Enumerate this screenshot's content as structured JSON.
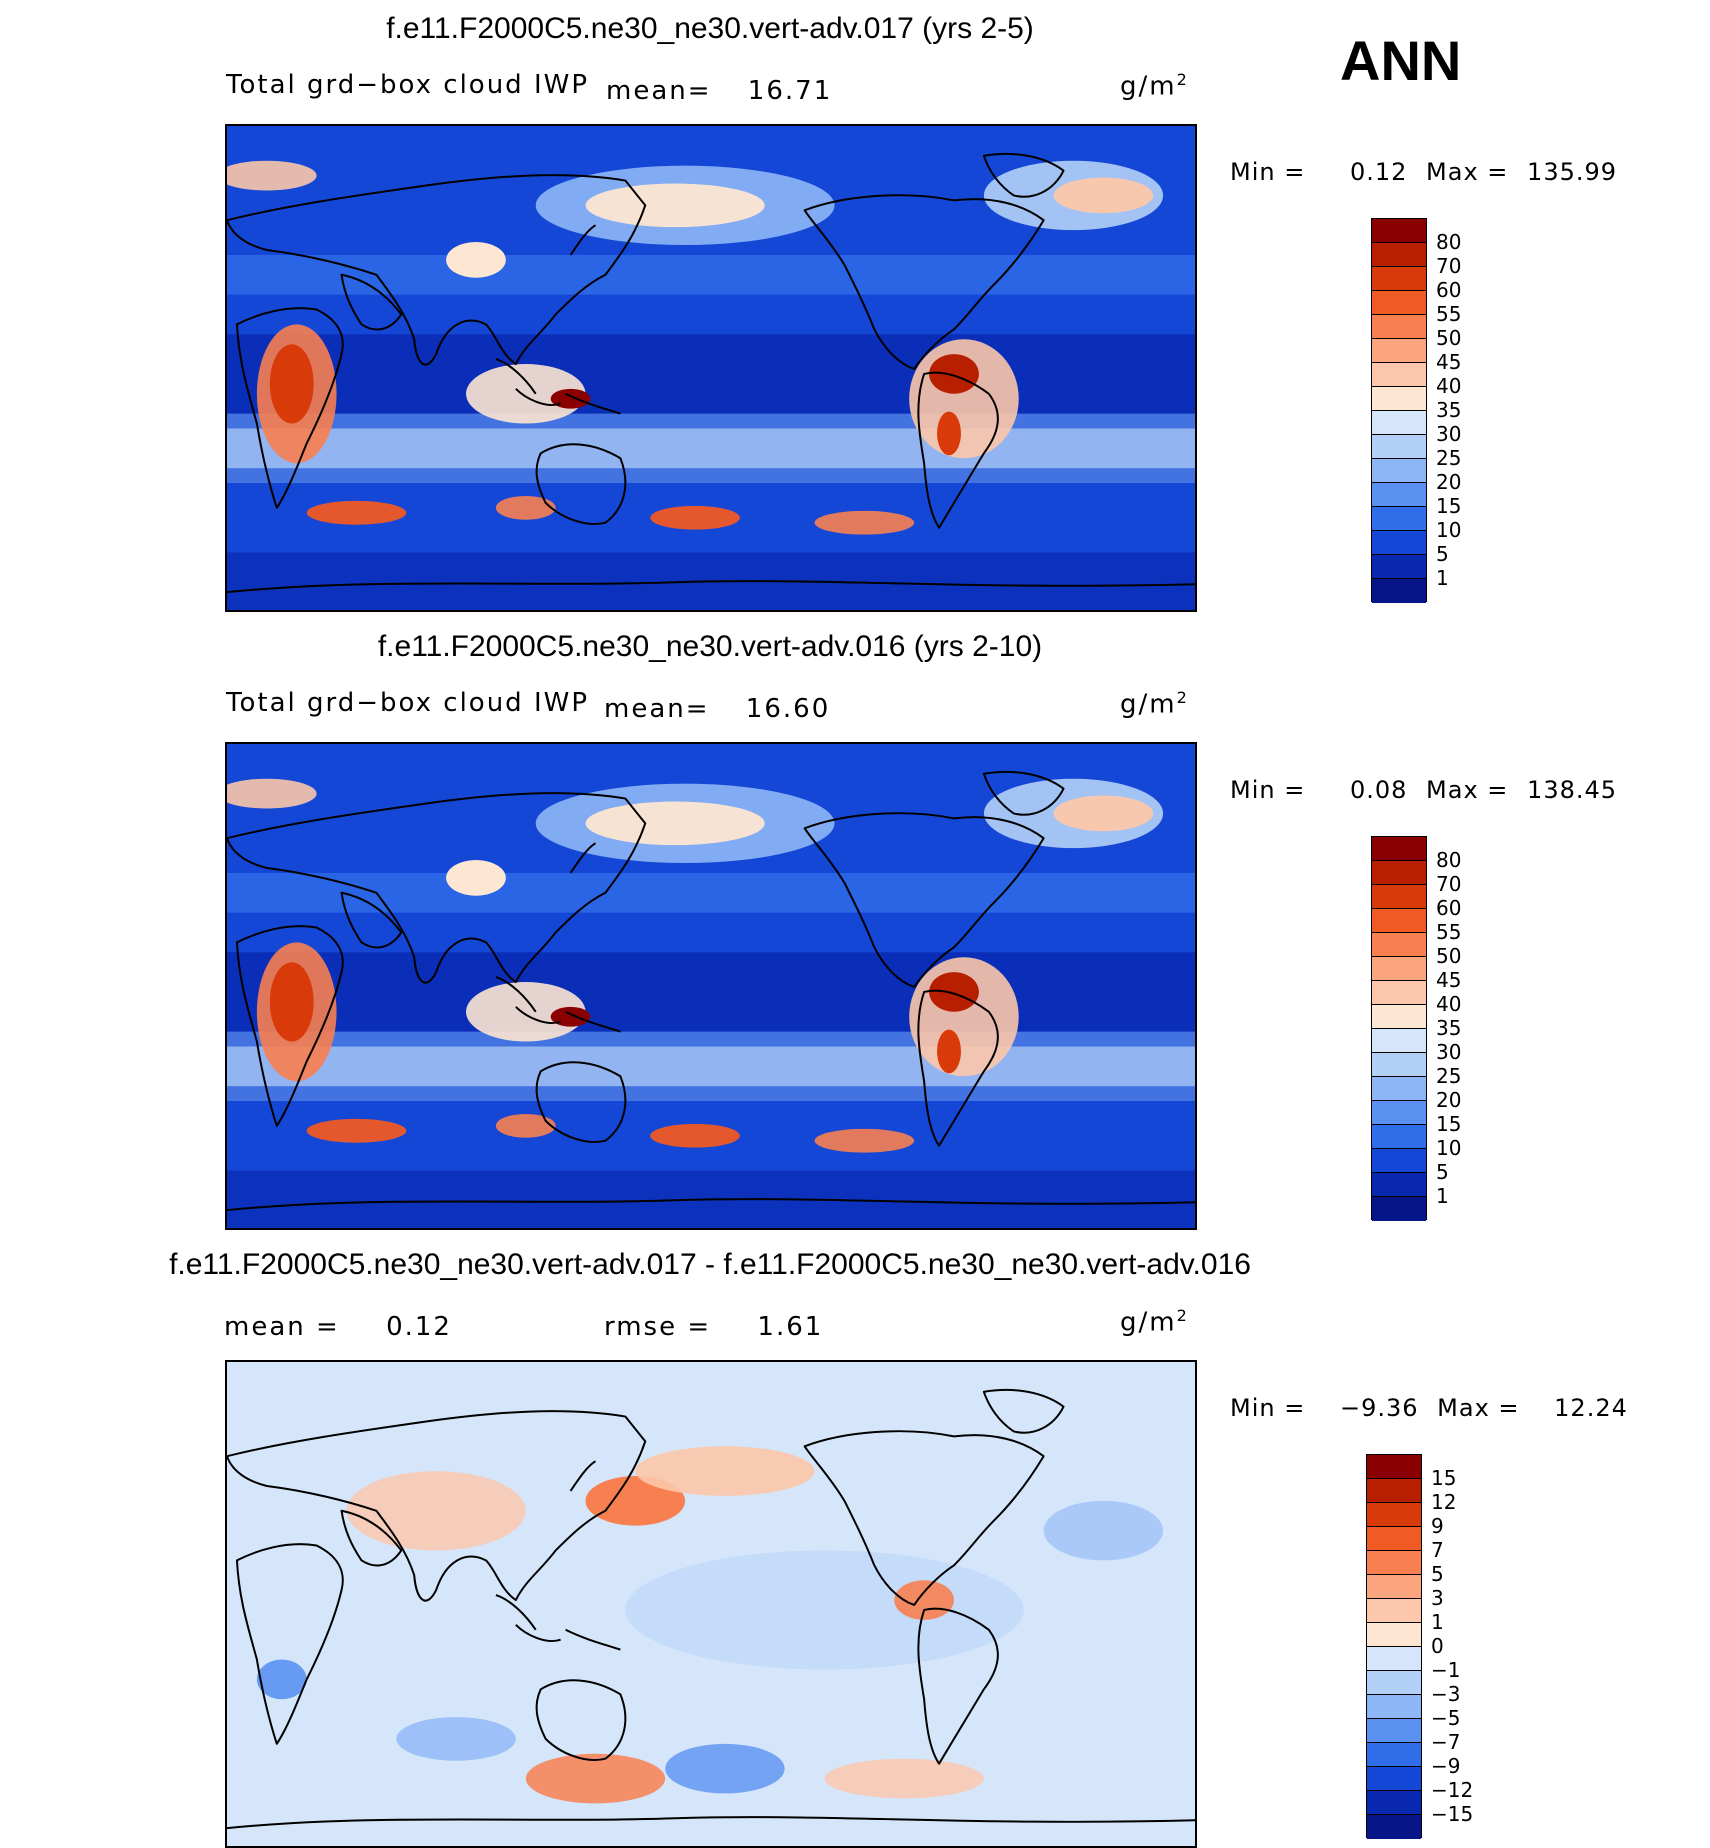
{
  "season": "ANN",
  "panels": [
    {
      "title": "f.e11.F2000C5.ne30_ne30.vert-adv.017 (yrs 2-5)",
      "variable": "Total grd−box cloud IWP",
      "stat1_label": "mean=",
      "stat1_value": "16.71",
      "stat2_label": "",
      "stat2_value": "",
      "units": "g/m",
      "units_sup": "2",
      "min_label": "Min =",
      "min_value": "0.12",
      "max_label": "Max =",
      "max_value": "135.99",
      "levels": [
        "80",
        "70",
        "60",
        "55",
        "50",
        "45",
        "40",
        "35",
        "30",
        "25",
        "20",
        "15",
        "10",
        "5",
        "1"
      ],
      "colors": [
        "#8a0000",
        "#b81e00",
        "#d93a0a",
        "#f05a25",
        "#f88050",
        "#fba57f",
        "#fcc7aa",
        "#fde6d2",
        "#d5e6fa",
        "#b3d0f8",
        "#8db6f6",
        "#5b92f2",
        "#2f6de9",
        "#1547d6",
        "#0828b0",
        "#061689"
      ]
    },
    {
      "title": "f.e11.F2000C5.ne30_ne30.vert-adv.016 (yrs 2-10)",
      "variable": "Total grd−box cloud IWP",
      "stat1_label": "mean=",
      "stat1_value": "16.60",
      "stat2_label": "",
      "stat2_value": "",
      "units": "g/m",
      "units_sup": "2",
      "min_label": "Min =",
      "min_value": "0.08",
      "max_label": "Max =",
      "max_value": "138.45",
      "levels": [
        "80",
        "70",
        "60",
        "55",
        "50",
        "45",
        "40",
        "35",
        "30",
        "25",
        "20",
        "15",
        "10",
        "5",
        "1"
      ],
      "colors": [
        "#8a0000",
        "#b81e00",
        "#d93a0a",
        "#f05a25",
        "#f88050",
        "#fba57f",
        "#fcc7aa",
        "#fde6d2",
        "#d5e6fa",
        "#b3d0f8",
        "#8db6f6",
        "#5b92f2",
        "#2f6de9",
        "#1547d6",
        "#0828b0",
        "#061689"
      ]
    },
    {
      "title": "f.e11.F2000C5.ne30_ne30.vert-adv.017 - f.e11.F2000C5.ne30_ne30.vert-adv.016",
      "variable": "",
      "stat1_label": "mean =",
      "stat1_value": "0.12",
      "stat2_label": "rmse =",
      "stat2_value": "1.61",
      "units": "g/m",
      "units_sup": "2",
      "min_label": "Min =",
      "min_value": "−9.36",
      "max_label": "Max =",
      "max_value": "12.24",
      "levels": [
        "15",
        "12",
        "9",
        "7",
        "5",
        "3",
        "1",
        "0",
        "−1",
        "−3",
        "−5",
        "−7",
        "−9",
        "−12",
        "−15"
      ],
      "colors": [
        "#8a0000",
        "#b81e00",
        "#d93a0a",
        "#f05a25",
        "#f88050",
        "#fba57f",
        "#fcc7aa",
        "#fde6d2",
        "#d5e6fa",
        "#b3d0f8",
        "#8db6f6",
        "#5b92f2",
        "#2f6de9",
        "#1547d6",
        "#0828b0",
        "#061689"
      ]
    }
  ]
}
